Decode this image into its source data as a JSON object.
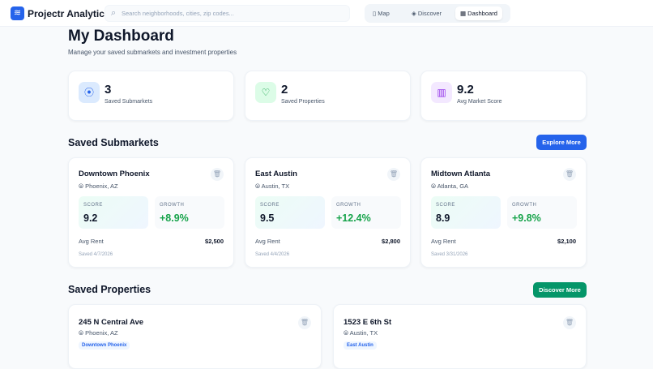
{
  "header": {
    "brand": "Projectr Analytics",
    "search_placeholder": "Search neighborhoods, cities, zip codes...",
    "nav": [
      {
        "label": "Map",
        "icon": "map-icon"
      },
      {
        "label": "Discover",
        "icon": "layers-icon"
      },
      {
        "label": "Dashboard",
        "icon": "grid-icon",
        "active": true
      }
    ]
  },
  "page": {
    "title": "My Dashboard",
    "subtitle": "Manage your saved submarkets and investment properties"
  },
  "stats": [
    {
      "value": "3",
      "label": "Saved Submarkets",
      "icon": "map-pin-icon",
      "color": "#2563eb"
    },
    {
      "value": "2",
      "label": "Saved Properties",
      "icon": "heart-icon",
      "color": "#16a34a"
    },
    {
      "value": "9.2",
      "label": "Avg Market Score",
      "icon": "bar-chart-icon",
      "color": "#9333ea"
    }
  ],
  "submarkets": {
    "title": "Saved Submarkets",
    "button": "Explore More",
    "score_label": "SCORE",
    "growth_label": "GROWTH",
    "rent_label": "Avg Rent",
    "items": [
      {
        "name": "Downtown Phoenix",
        "location": "Phoenix, AZ",
        "score": "9.2",
        "growth": "+8.9%",
        "rent": "$2,500",
        "saved": "Saved 4/7/2026"
      },
      {
        "name": "East Austin",
        "location": "Austin, TX",
        "score": "9.5",
        "growth": "+12.4%",
        "rent": "$2,800",
        "saved": "Saved 4/4/2026"
      },
      {
        "name": "Midtown Atlanta",
        "location": "Atlanta, GA",
        "score": "8.9",
        "growth": "+9.8%",
        "rent": "$2,100",
        "saved": "Saved 3/31/2026"
      }
    ]
  },
  "properties": {
    "title": "Saved Properties",
    "button": "Discover More",
    "items": [
      {
        "address": "245 N Central Ave",
        "location": "Phoenix, AZ",
        "submarket": "Downtown Phoenix"
      },
      {
        "address": "1523 E 6th St",
        "location": "Austin, TX",
        "submarket": "East Austin"
      }
    ]
  },
  "colors": {
    "primary": "#2563eb",
    "success": "#059669",
    "growth": "#16a34a"
  }
}
